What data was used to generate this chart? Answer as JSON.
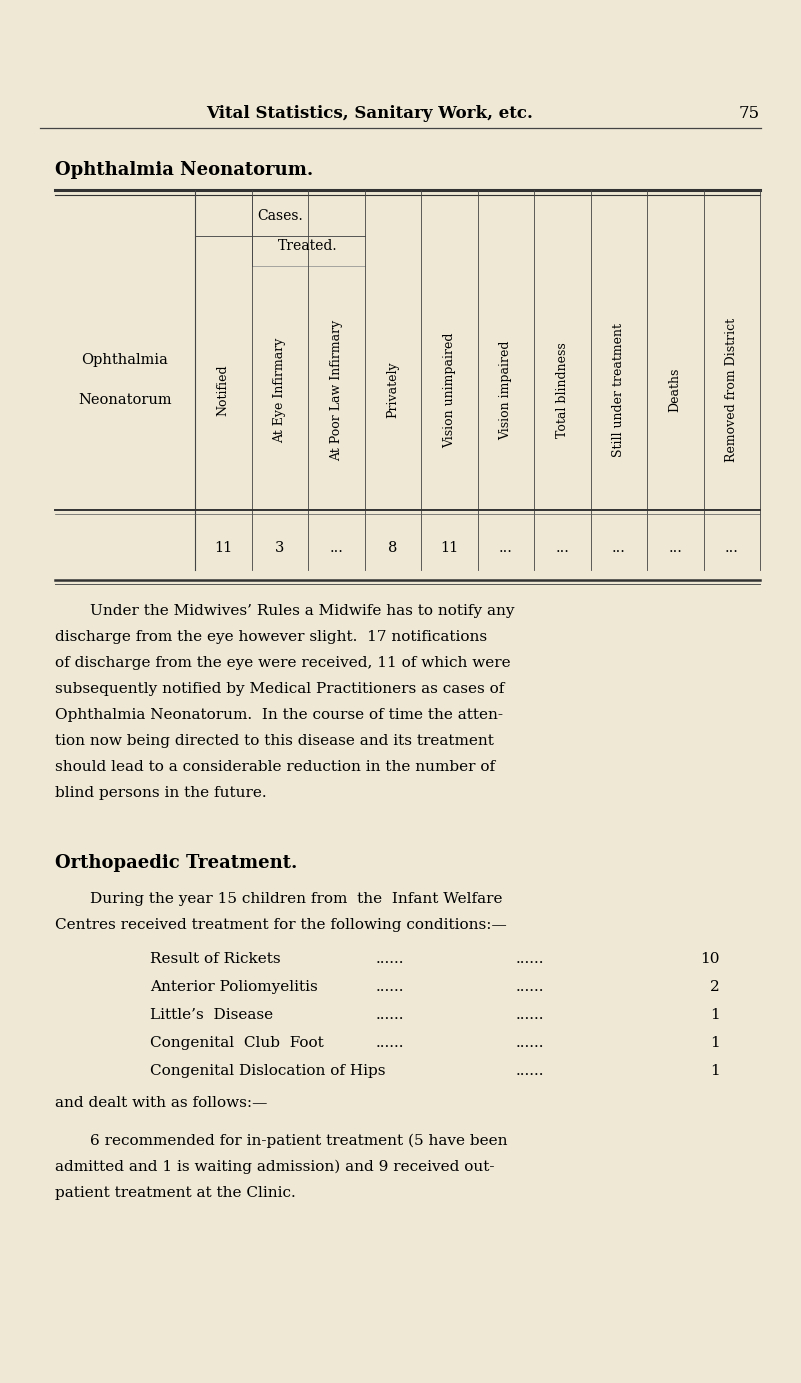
{
  "bg_color": "#eee8d5",
  "page_title": "Vital Statistics, Sanitary Work, etc.",
  "page_number": "75",
  "section_title": "Ophthalmia Neonatorum.",
  "table_row_label_line1": "Ophthalmia",
  "table_row_label_line2": "Neonatorum",
  "cases_header": "Cases.",
  "treated_header": "Treated.",
  "col_headers": [
    "Notified",
    "At Eye Infirmary",
    "At Poor Law Infirmary",
    "Privately",
    "Vision unimpaired",
    "Vision impaired",
    "Total blindness",
    "Still under treatment",
    "Deaths",
    "Removed from District"
  ],
  "data_row": [
    "11",
    "3",
    "...",
    "8",
    "11",
    "...",
    "...",
    "...",
    "...",
    "..."
  ],
  "para1_lines": [
    "Under the Midwives’ Rules a Midwife has to notify any",
    "discharge from the eye however slight.  17 notifications",
    "of discharge from the eye were received, 11 of which were",
    "subsequently notified by Medical Practitioners as cases of",
    "Ophthalmia Neonatorum.  In the course of time the atten-",
    "tion now being directed to this disease and its treatment",
    "should lead to a considerable reduction in the number of",
    "blind persons in the future."
  ],
  "section2_title": "Orthopaedic Treatment.",
  "para2_line1": "During the year 15 children from  the  Infant Welfare",
  "para2_line2": "Centres received treatment for the following conditions:—",
  "conditions": [
    [
      "Result of Rickets",
      "......",
      "......",
      "10"
    ],
    [
      "Anterior Poliomyelitis",
      "......",
      "......",
      "2"
    ],
    [
      "Little’s  Disease",
      "......",
      "......",
      "1"
    ],
    [
      "Congenital  Club  Foot",
      "......",
      "......",
      "1"
    ],
    [
      "Congenital Dislocation of Hips",
      "......",
      "1"
    ]
  ],
  "para3": "and dealt with as follows:—",
  "para4_lines": [
    "6 recommended for in-patient treatment (5 have been",
    "admitted and 1 is waiting admission) and 9 received out-",
    "patient treatment at the Clinic."
  ]
}
